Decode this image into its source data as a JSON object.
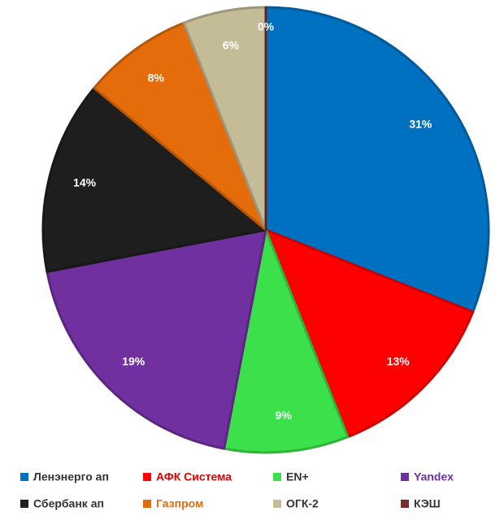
{
  "chart_data": {
    "type": "pie",
    "categories": [
      "Ленэнерго ап",
      "АФК Система",
      "EN+",
      "Yandex",
      "Сбербанк ап",
      "Газпром",
      "ОГК-2",
      "КЭШ"
    ],
    "values": [
      31,
      13,
      9,
      19,
      14,
      8,
      6,
      0
    ],
    "value_labels": [
      "31%",
      "13%",
      "9%",
      "19%",
      "14%",
      "8%",
      "6%",
      "0%"
    ],
    "colors": [
      "#0070c0",
      "#ff0000",
      "#3ce04a",
      "#7030a0",
      "#1e1e1e",
      "#e46c0a",
      "#c4bc96",
      "#7b2b2b"
    ]
  }
}
